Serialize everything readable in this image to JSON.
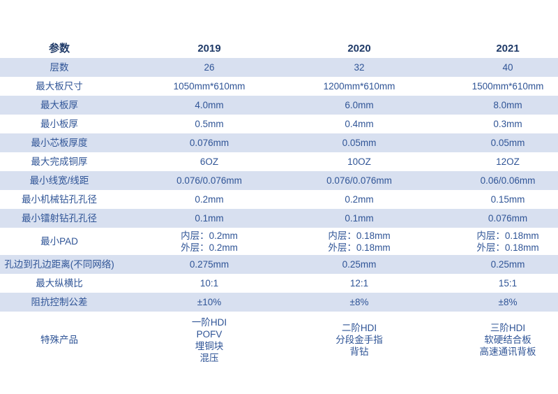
{
  "colors": {
    "background": "#FFFFFF",
    "row_band": "#D8E0F0",
    "body_text": "#2F5496",
    "header_text": "#1F3A68"
  },
  "table": {
    "header": {
      "param": "参数",
      "y2019": "2019",
      "y2020": "2020",
      "y2021": "2021"
    },
    "rows": [
      {
        "param": "层数",
        "y2019": "26",
        "y2020": "32",
        "y2021": "40"
      },
      {
        "param": "最大板尺寸",
        "y2019": "1050mm*610mm",
        "y2020": "1200mm*610mm",
        "y2021": "1500mm*610mm"
      },
      {
        "param": "最大板厚",
        "y2019": "4.0mm",
        "y2020": "6.0mm",
        "y2021": "8.0mm"
      },
      {
        "param": "最小板厚",
        "y2019": "0.5mm",
        "y2020": "0.4mm",
        "y2021": "0.3mm"
      },
      {
        "param": "最小芯板厚度",
        "y2019": "0.076mm",
        "y2020": "0.05mm",
        "y2021": "0.05mm"
      },
      {
        "param": "最大完成铜厚",
        "y2019": "6OZ",
        "y2020": "10OZ",
        "y2021": "12OZ"
      },
      {
        "param": "最小线宽/线距",
        "y2019": "0.076/0.076mm",
        "y2020": "0.076/0.076mm",
        "y2021": "0.06/0.06mm"
      },
      {
        "param": "最小机械钻孔孔径",
        "y2019": "0.2mm",
        "y2020": "0.2mm",
        "y2021": "0.15mm"
      },
      {
        "param": "最小镭射钻孔孔径",
        "y2019": "0.1mm",
        "y2020": "0.1mm",
        "y2021": "0.076mm"
      },
      {
        "param": "最小PAD",
        "y2019": "内层：0.2mm\n外层：0.2mm",
        "y2020": "内层：0.18mm\n外层：0.18mm",
        "y2021": "内层：0.18mm\n外层：0.18mm"
      },
      {
        "param": "孔边到孔边距离(不同网络)",
        "y2019": "0.275mm",
        "y2020": "0.25mm",
        "y2021": "0.25mm"
      },
      {
        "param": "最大纵横比",
        "y2019": "10:1",
        "y2020": "12:1",
        "y2021": "15:1"
      },
      {
        "param": "阻抗控制公差",
        "y2019": "±10%",
        "y2020": "±8%",
        "y2021": "±8%"
      },
      {
        "param": "特殊产品",
        "y2019": "一阶HDI\nPOFV\n埋铜块\n混压",
        "y2020": "二阶HDI\n分段金手指\n背钻",
        "y2021": "三阶HDI\n软硬结合板\n高速通讯背板"
      }
    ]
  }
}
